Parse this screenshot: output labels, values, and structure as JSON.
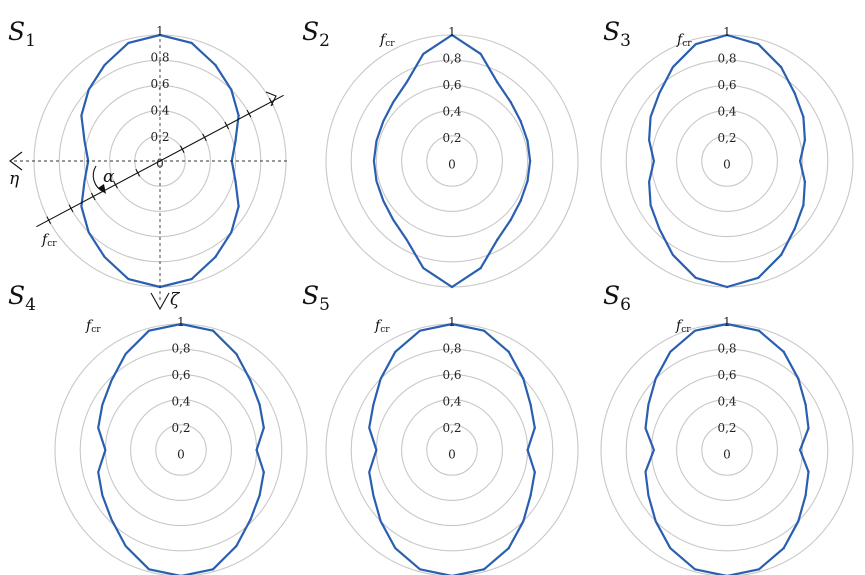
{
  "chart_data": [
    {
      "type": "polar-line",
      "panel": "S1",
      "panel_label": {
        "main": "S",
        "sub": "1"
      },
      "r_ticks": [
        "0",
        "0,2",
        "0,4",
        "0,6",
        "0,8",
        "1"
      ],
      "rlim": [
        0,
        1
      ],
      "radial_axis_label": {
        "main": "f",
        "sub": "cr"
      },
      "angle_symbol": "α",
      "horizontal_axis_symbol": "η",
      "vertical_axis_symbol": "ζ",
      "angle_deg": [
        0,
        15,
        30,
        45,
        60,
        75,
        90,
        105,
        120,
        135,
        150,
        165,
        180
      ],
      "f_cr": [
        1.0,
        0.97,
        0.88,
        0.8,
        0.72,
        0.62,
        0.57,
        0.62,
        0.72,
        0.8,
        0.88,
        0.97,
        1.0
      ]
    },
    {
      "type": "polar-line",
      "panel": "S2",
      "panel_label": {
        "main": "S",
        "sub": "2"
      },
      "r_ticks": [
        "0",
        "0,2",
        "0,4",
        "0,6",
        "0,8",
        "1"
      ],
      "rlim": [
        0,
        1
      ],
      "radial_axis_label": {
        "main": "f",
        "sub": "cr"
      },
      "angle_deg": [
        0,
        15,
        30,
        45,
        60,
        75,
        90,
        105,
        120,
        135,
        150,
        165,
        180
      ],
      "f_cr": [
        1.0,
        0.88,
        0.72,
        0.66,
        0.63,
        0.62,
        0.62,
        0.62,
        0.63,
        0.66,
        0.72,
        0.88,
        1.0
      ]
    },
    {
      "type": "polar-line",
      "panel": "S3",
      "panel_label": {
        "main": "S",
        "sub": "3"
      },
      "r_ticks": [
        "0",
        "0,2",
        "0,4",
        "0,6",
        "0,8",
        "1"
      ],
      "rlim": [
        0,
        1
      ],
      "radial_axis_label": {
        "main": "f",
        "sub": "cr"
      },
      "angle_deg": [
        0,
        15,
        30,
        45,
        60,
        75,
        90,
        105,
        120,
        135,
        150,
        165,
        180
      ],
      "f_cr": [
        1.0,
        0.96,
        0.86,
        0.76,
        0.7,
        0.64,
        0.58,
        0.64,
        0.7,
        0.76,
        0.86,
        0.96,
        1.0
      ]
    },
    {
      "type": "polar-line",
      "panel": "S4",
      "panel_label": {
        "main": "S",
        "sub": "4"
      },
      "r_ticks": [
        "0",
        "0,2",
        "0,4",
        "0,6",
        "0,8",
        "1"
      ],
      "rlim": [
        0,
        1
      ],
      "radial_axis_label": {
        "main": "f",
        "sub": "cr"
      },
      "angle_deg": [
        0,
        15,
        30,
        45,
        60,
        75,
        90,
        105,
        120,
        135,
        150,
        165,
        180
      ],
      "f_cr": [
        1.0,
        0.98,
        0.88,
        0.78,
        0.72,
        0.68,
        0.6,
        0.68,
        0.72,
        0.78,
        0.88,
        0.98,
        1.0
      ]
    },
    {
      "type": "polar-line",
      "panel": "S5",
      "panel_label": {
        "main": "S",
        "sub": "5"
      },
      "r_ticks": [
        "0",
        "0,2",
        "0,4",
        "0,6",
        "0,8",
        "1"
      ],
      "rlim": [
        0,
        1
      ],
      "radial_axis_label": {
        "main": "f",
        "sub": "cr"
      },
      "angle_deg": [
        0,
        15,
        30,
        45,
        60,
        75,
        90,
        105,
        120,
        135,
        150,
        165,
        180
      ],
      "f_cr": [
        1.0,
        0.98,
        0.9,
        0.8,
        0.72,
        0.68,
        0.6,
        0.68,
        0.72,
        0.8,
        0.9,
        0.98,
        1.0
      ]
    },
    {
      "type": "polar-line",
      "panel": "S6",
      "panel_label": {
        "main": "S",
        "sub": "6"
      },
      "r_ticks": [
        "0",
        "0,2",
        "0,4",
        "0,6",
        "0,8",
        "1"
      ],
      "rlim": [
        0,
        1
      ],
      "radial_axis_label": {
        "main": "f",
        "sub": "cr"
      },
      "angle_deg": [
        0,
        15,
        30,
        45,
        60,
        75,
        90,
        105,
        120,
        135,
        150,
        165,
        180
      ],
      "f_cr": [
        1.0,
        0.98,
        0.9,
        0.8,
        0.72,
        0.67,
        0.58,
        0.67,
        0.72,
        0.8,
        0.9,
        0.98,
        1.0
      ]
    }
  ],
  "colors": {
    "curve": "#2a5fb0",
    "rings": "#c8c8c8"
  }
}
